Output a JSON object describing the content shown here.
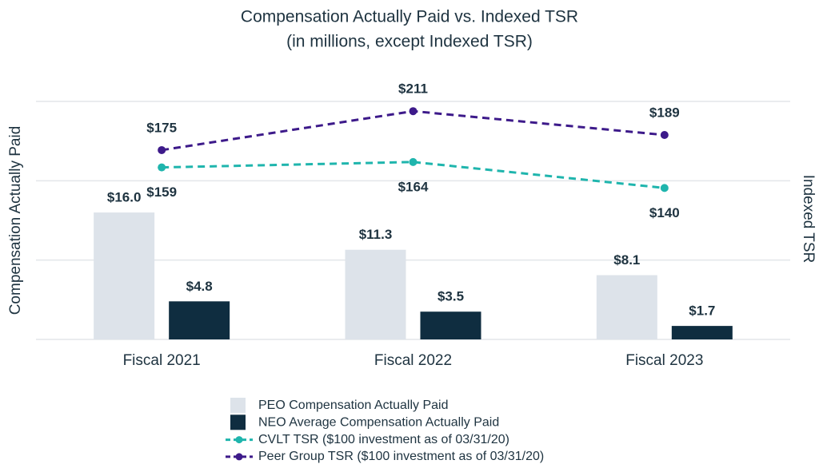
{
  "chart_data": {
    "type": "bar",
    "title": "Compensation Actually Paid vs. Indexed TSR",
    "subtitle": "(in millions, except Indexed TSR)",
    "y_label": "Compensation Actually Paid",
    "y2_label": "Indexed TSR",
    "categories": [
      "Fiscal 2021",
      "Fiscal 2022",
      "Fiscal 2023"
    ],
    "ylim": [
      0,
      30
    ],
    "yticks": [
      0,
      10,
      20,
      30
    ],
    "y2lim": [
      0,
      220
    ],
    "grid": true,
    "series": [
      {
        "name": "PEO Compensation Actually Paid",
        "type": "bar",
        "color": "#dde3ea",
        "values": [
          16.0,
          11.3,
          8.1
        ],
        "value_labels": [
          "$16.0",
          "$11.3",
          "$8.1"
        ]
      },
      {
        "name": "NEO Average Compensation Actually Paid",
        "type": "bar",
        "color": "#0f2d40",
        "values": [
          4.8,
          3.5,
          1.7
        ],
        "value_labels": [
          "$4.8",
          "$3.5",
          "$1.7"
        ]
      },
      {
        "name": "CVLT TSR ($100 investment as of 03/31/20)",
        "type": "line",
        "axis": "y2",
        "color": "#1fb5ad",
        "values": [
          159,
          164,
          140
        ],
        "value_labels": [
          "$159",
          "$164",
          "$140"
        ]
      },
      {
        "name": "Peer Group TSR ($100 investment as of 03/31/20)",
        "type": "line",
        "axis": "y2",
        "color": "#3d1a8a",
        "values": [
          175,
          211,
          189
        ],
        "value_labels": [
          "$175",
          "$211",
          "$189"
        ]
      }
    ]
  }
}
